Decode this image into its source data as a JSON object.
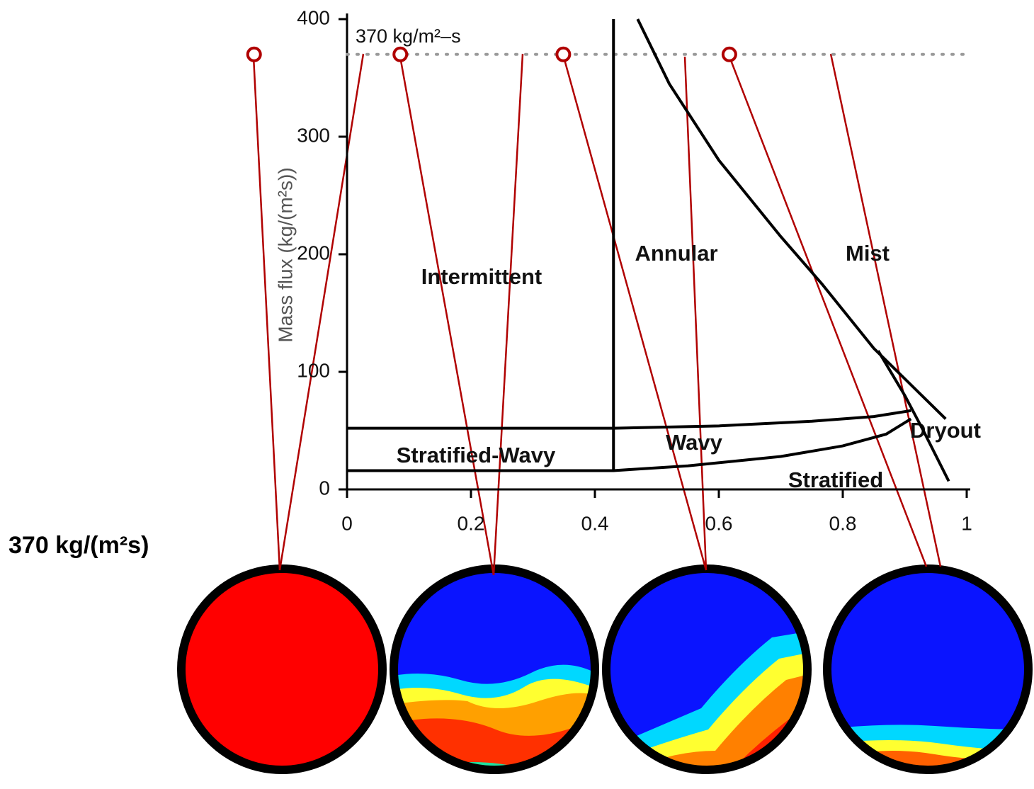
{
  "chart_data": {
    "type": "line",
    "ylabel": "Mass flux (kg/(m²s))",
    "xlim": [
      0,
      1
    ],
    "ylim": [
      0,
      400
    ],
    "xticks": [
      0,
      0.2,
      0.4,
      0.6,
      0.8,
      1
    ],
    "yticks": [
      0,
      100,
      200,
      300,
      400
    ],
    "series": [
      {
        "color": "#000000",
        "x": [
          0.43,
          0.43
        ],
        "values": [
          15,
          400
        ]
      },
      {
        "color": "#000000",
        "x": [
          0,
          0.43,
          0.6,
          0.75,
          0.85,
          0.91
        ],
        "values": [
          52,
          52,
          54,
          58,
          62,
          67
        ]
      },
      {
        "color": "#000000",
        "x": [
          0,
          0.43,
          0.55,
          0.7,
          0.8,
          0.87,
          0.91
        ],
        "values": [
          16,
          16,
          20,
          28,
          37,
          47,
          60
        ]
      },
      {
        "color": "#000000",
        "x": [
          0.469,
          0.52,
          0.6,
          0.7,
          0.766,
          0.85,
          0.966
        ],
        "values": [
          400,
          345,
          280,
          215,
          175,
          120,
          60
        ]
      },
      {
        "color": "#000000",
        "x": [
          0.857,
          0.9,
          0.93,
          0.971
        ],
        "values": [
          118,
          80,
          50,
          7
        ]
      }
    ],
    "reference_line": {
      "y": 370,
      "color": "#999999",
      "label": "370 kg/m²–s"
    },
    "markers": {
      "color": "#b00000",
      "x": [
        -0.15,
        0.086,
        0.349,
        0.617
      ],
      "values": [
        370,
        370,
        370,
        370
      ]
    },
    "annotations": [
      "Intermittent",
      "Annular",
      "Mist",
      "Wavy",
      "Stratified-Wavy",
      "Stratified",
      "Dryout"
    ],
    "side_label": "370 kg/(m²s)"
  }
}
